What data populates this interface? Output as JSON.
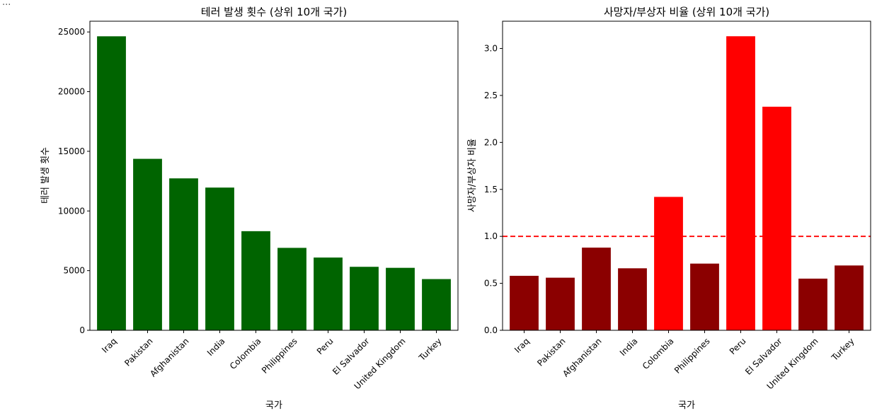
{
  "top_ellipsis": "...",
  "chart_data": [
    {
      "type": "bar",
      "title": "테러 발생 횟수 (상위 10개 국가)",
      "xlabel": "국가",
      "ylabel": "테러 발생 횟수",
      "categories": [
        "Iraq",
        "Pakistan",
        "Afghanistan",
        "India",
        "Colombia",
        "Philippines",
        "Peru",
        "El Salvador",
        "United Kingdom",
        "Turkey"
      ],
      "values": [
        24636,
        14368,
        12731,
        11960,
        8306,
        6908,
        6096,
        5320,
        5235,
        4292
      ],
      "ylim": [
        0,
        25900
      ],
      "yticks": [
        0,
        5000,
        10000,
        15000,
        20000,
        25000
      ],
      "bar_colors": [
        "#006400",
        "#006400",
        "#006400",
        "#006400",
        "#006400",
        "#006400",
        "#006400",
        "#006400",
        "#006400",
        "#006400"
      ],
      "grid": false
    },
    {
      "type": "bar",
      "title": "사망자/부상자 비율 (상위 10개 국가)",
      "xlabel": "국가",
      "ylabel": "사망자/부상자 비율",
      "categories": [
        "Iraq",
        "Pakistan",
        "Afghanistan",
        "India",
        "Colombia",
        "Philippines",
        "Peru",
        "El Salvador",
        "United Kingdom",
        "Turkey"
      ],
      "values": [
        0.58,
        0.56,
        0.88,
        0.66,
        1.42,
        0.71,
        3.13,
        2.38,
        0.55,
        0.69
      ],
      "ylim": [
        0,
        3.29
      ],
      "yticks": [
        0.0,
        0.5,
        1.0,
        1.5,
        2.0,
        2.5,
        3.0
      ],
      "reference_line": {
        "y": 1.0,
        "color": "#ff0000",
        "style": "dashed"
      },
      "bar_colors": [
        "#8b0000",
        "#8b0000",
        "#8b0000",
        "#8b0000",
        "#ff0000",
        "#8b0000",
        "#ff0000",
        "#ff0000",
        "#8b0000",
        "#8b0000"
      ],
      "grid": false
    }
  ]
}
